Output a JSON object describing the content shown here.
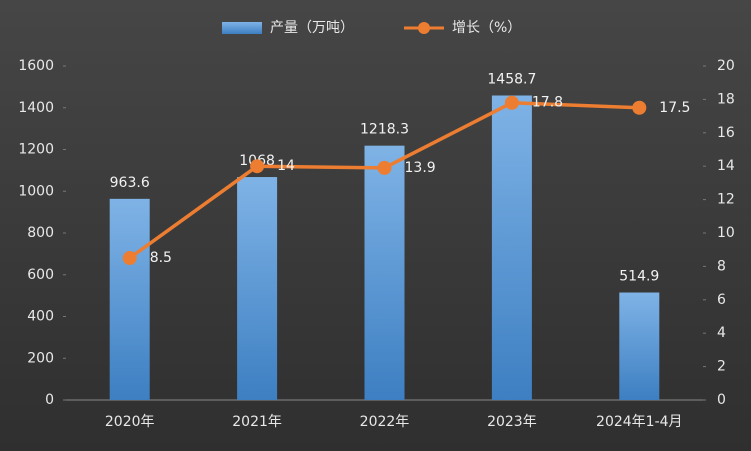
{
  "chart_data": {
    "type": "bar-line",
    "categories": [
      "2020年",
      "2021年",
      "2022年",
      "2023年",
      "2024年1-4月"
    ],
    "series": [
      {
        "name": "产量（万吨）",
        "color": "#5b9bd5",
        "type": "bar",
        "values": [
          963.6,
          1068,
          1218.3,
          1458.7,
          514.9
        ]
      },
      {
        "name": "增长（%）",
        "color": "#ed7d31",
        "type": "line",
        "axis": "y2",
        "values": [
          8.5,
          14,
          13.9,
          17.8,
          17.5
        ]
      }
    ],
    "ylim": [
      0,
      1600
    ],
    "yticks": [
      0,
      200,
      400,
      600,
      800,
      1000,
      1200,
      1400,
      1600
    ],
    "y2lim": [
      0,
      20
    ],
    "y2ticks": [
      0,
      2,
      4,
      6,
      8,
      10,
      12,
      14,
      16,
      18,
      20
    ],
    "legend": "top"
  }
}
